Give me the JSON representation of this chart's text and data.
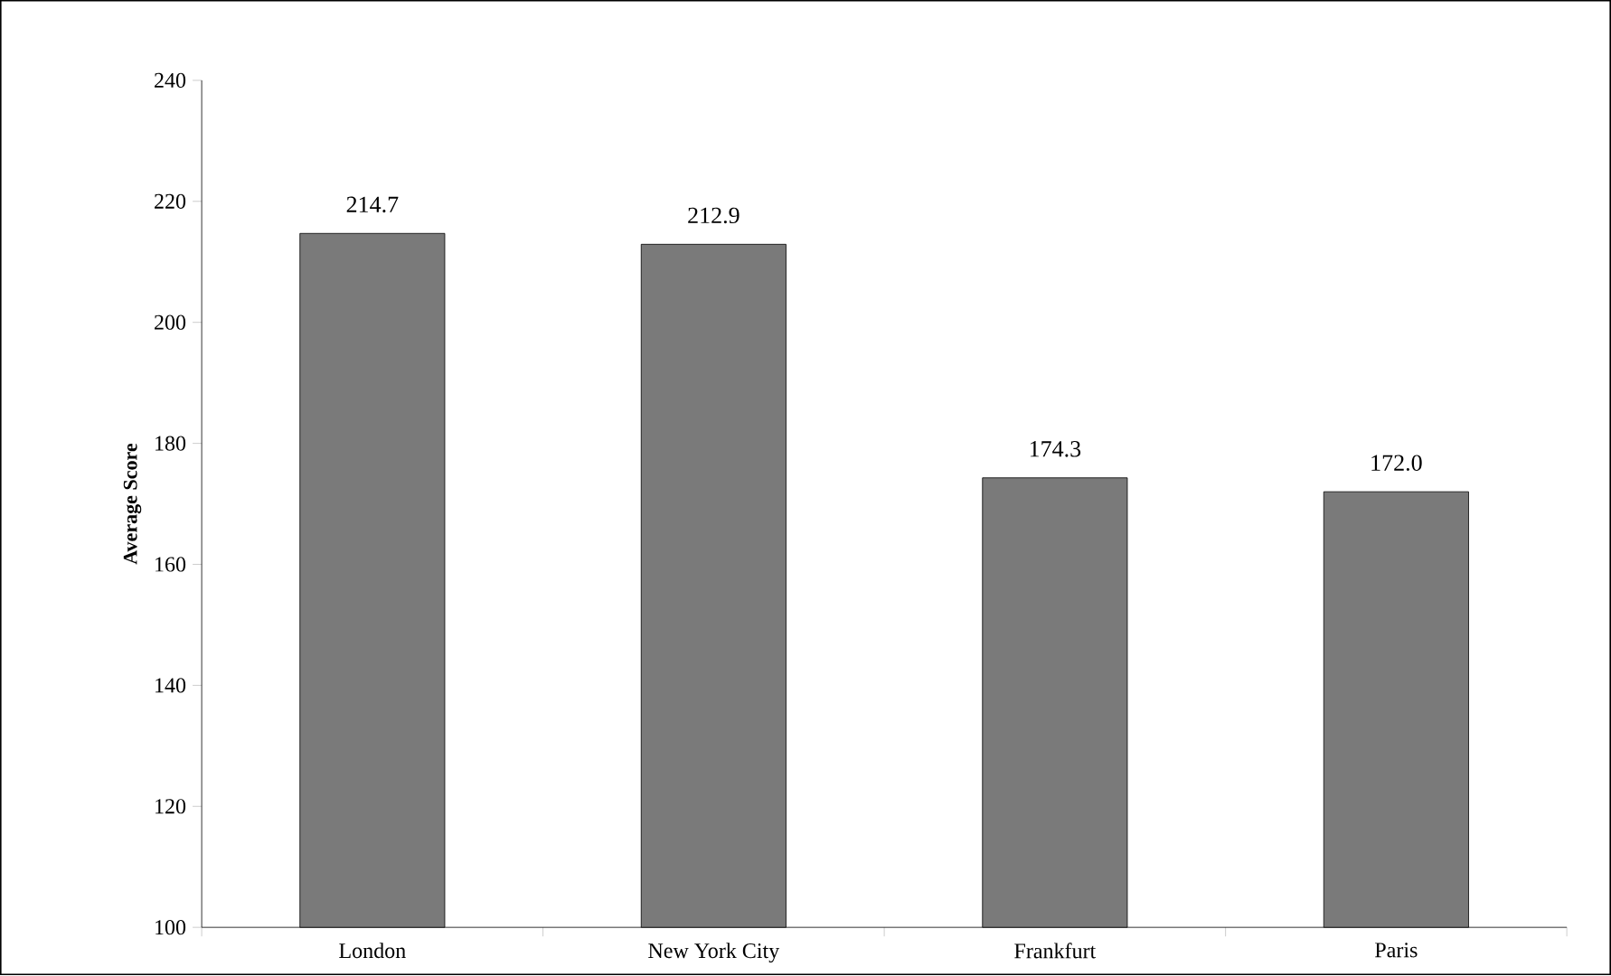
{
  "chart_data": {
    "type": "bar",
    "ylabel": "Average Score",
    "categories": [
      "London",
      "New York City",
      "Frankfurt",
      "Paris"
    ],
    "values": [
      214.7,
      212.9,
      174.3,
      172.0
    ],
    "value_labels": [
      "214.7",
      "212.9",
      "174.3",
      "172.0"
    ],
    "color": "#7a7a7a",
    "ylim": [
      100,
      240
    ],
    "yticks": [
      100,
      120,
      140,
      160,
      180,
      200,
      220,
      240
    ],
    "grid": false
  }
}
